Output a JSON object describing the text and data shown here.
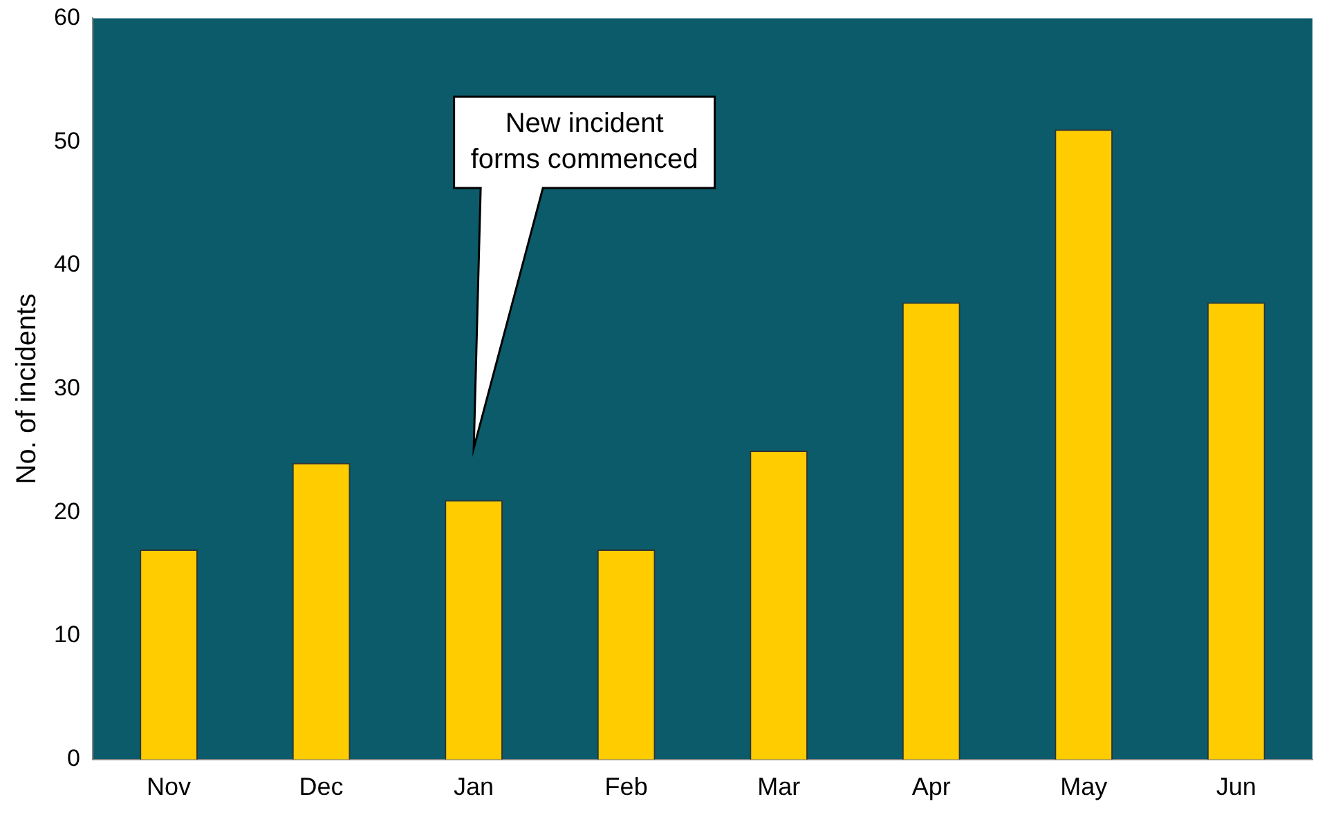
{
  "chart_data": {
    "type": "bar",
    "ylabel": "No. of incidents",
    "categories": [
      "Nov",
      "Dec",
      "Jan",
      "Feb",
      "Mar",
      "Apr",
      "May",
      "Jun"
    ],
    "values": [
      17,
      24,
      21,
      17,
      25,
      37,
      51,
      37
    ],
    "color": "#ffcc00",
    "ylim": [
      0,
      60
    ],
    "yticks": [
      0,
      10,
      20,
      30,
      40,
      50,
      60
    ],
    "grid": false,
    "legend": false,
    "annotations": [
      "New incident forms commenced"
    ]
  }
}
